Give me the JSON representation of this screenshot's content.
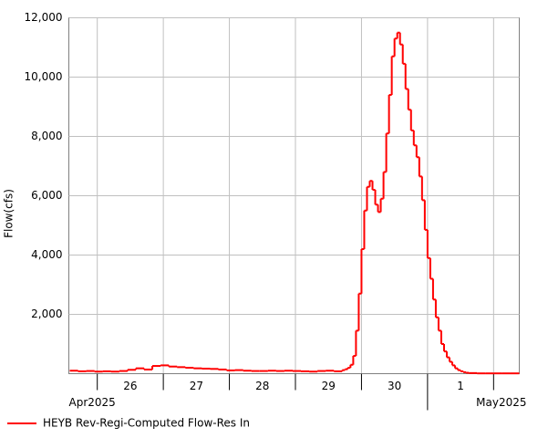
{
  "chart_data": {
    "type": "step",
    "y_label": "Flow(cfs)",
    "ylim": [
      0,
      12000
    ],
    "yticks": [
      {
        "value": 2000,
        "label": "2,000"
      },
      {
        "value": 4000,
        "label": "4,000"
      },
      {
        "value": 6000,
        "label": "6,000"
      },
      {
        "value": 8000,
        "label": "8,000"
      },
      {
        "value": 10000,
        "label": "10,000"
      },
      {
        "value": 12000,
        "label": "12,000"
      }
    ],
    "xlim": [
      "2025-04-25T13:40",
      "2025-05-02T09:20"
    ],
    "xticks": [
      {
        "value": "2025-04-26T00:00",
        "label": "26"
      },
      {
        "value": "2025-04-27T00:00",
        "label": "27"
      },
      {
        "value": "2025-04-28T00:00",
        "label": "28"
      },
      {
        "value": "2025-04-29T00:00",
        "label": "29"
      },
      {
        "value": "2025-04-30T00:00",
        "label": "30"
      },
      {
        "value": "2025-05-01T00:00",
        "label": "1"
      },
      {
        "value": "2025-05-02T00:00",
        "label": null
      }
    ],
    "months": [
      {
        "value": "2025-04-01T00:00",
        "label": "Apr2025"
      },
      {
        "value": "2025-05-01T00:00",
        "label": "May2025"
      }
    ],
    "grid": true,
    "series": [
      {
        "name": "HEYB Rev-Regi-Computed Flow-Res In",
        "color": "#ff0000",
        "x": [
          "2025-04-25T14:00",
          "2025-04-25T17:00",
          "2025-04-25T20:00",
          "2025-04-25T23:00",
          "2025-04-26T02:00",
          "2025-04-26T05:00",
          "2025-04-26T08:00",
          "2025-04-26T11:00",
          "2025-04-26T14:00",
          "2025-04-26T17:00",
          "2025-04-26T20:00",
          "2025-04-26T23:00",
          "2025-04-27T02:00",
          "2025-04-27T05:00",
          "2025-04-27T08:00",
          "2025-04-27T11:00",
          "2025-04-27T14:00",
          "2025-04-27T17:00",
          "2025-04-27T20:00",
          "2025-04-27T23:00",
          "2025-04-28T02:00",
          "2025-04-28T05:00",
          "2025-04-28T08:00",
          "2025-04-28T11:00",
          "2025-04-28T14:00",
          "2025-04-28T17:00",
          "2025-04-28T20:00",
          "2025-04-28T23:00",
          "2025-04-29T02:00",
          "2025-04-29T05:00",
          "2025-04-29T08:00",
          "2025-04-29T11:00",
          "2025-04-29T14:00",
          "2025-04-29T17:00",
          "2025-04-29T18:00",
          "2025-04-29T19:00",
          "2025-04-29T20:00",
          "2025-04-29T21:00",
          "2025-04-29T22:00",
          "2025-04-29T23:00",
          "2025-04-30T00:00",
          "2025-04-30T01:00",
          "2025-04-30T02:00",
          "2025-04-30T03:00",
          "2025-04-30T04:00",
          "2025-04-30T05:00",
          "2025-04-30T06:00",
          "2025-04-30T07:00",
          "2025-04-30T08:00",
          "2025-04-30T09:00",
          "2025-04-30T10:00",
          "2025-04-30T11:00",
          "2025-04-30T12:00",
          "2025-04-30T13:00",
          "2025-04-30T14:00",
          "2025-04-30T15:00",
          "2025-04-30T16:00",
          "2025-04-30T17:00",
          "2025-04-30T18:00",
          "2025-04-30T19:00",
          "2025-04-30T20:00",
          "2025-04-30T21:00",
          "2025-04-30T22:00",
          "2025-04-30T23:00",
          "2025-05-01T00:00",
          "2025-05-01T01:00",
          "2025-05-01T02:00",
          "2025-05-01T03:00",
          "2025-05-01T04:00",
          "2025-05-01T05:00",
          "2025-05-01T06:00",
          "2025-05-01T07:00",
          "2025-05-01T08:00",
          "2025-05-01T09:00",
          "2025-05-01T10:00",
          "2025-05-01T11:00",
          "2025-05-01T12:00",
          "2025-05-01T13:00",
          "2025-05-01T14:00",
          "2025-05-01T15:00",
          "2025-05-01T18:00",
          "2025-05-01T21:00",
          "2025-05-02T00:00",
          "2025-05-02T03:00",
          "2025-05-02T06:00",
          "2025-05-02T09:00"
        ],
        "values": [
          100,
          80,
          90,
          70,
          80,
          70,
          90,
          130,
          180,
          140,
          260,
          280,
          240,
          220,
          200,
          180,
          170,
          160,
          140,
          110,
          120,
          100,
          90,
          90,
          100,
          90,
          100,
          90,
          80,
          70,
          90,
          100,
          80,
          120,
          150,
          200,
          300,
          600,
          1450,
          2700,
          4200,
          5500,
          6300,
          6500,
          6200,
          5700,
          5450,
          5900,
          6800,
          8100,
          9400,
          10700,
          11300,
          11500,
          11100,
          10450,
          9600,
          8900,
          8200,
          7700,
          7300,
          6650,
          5850,
          4850,
          3900,
          3200,
          2500,
          1900,
          1450,
          1000,
          750,
          550,
          400,
          280,
          180,
          120,
          80,
          50,
          30,
          20,
          10,
          10,
          10,
          10,
          10,
          10
        ]
      }
    ]
  }
}
